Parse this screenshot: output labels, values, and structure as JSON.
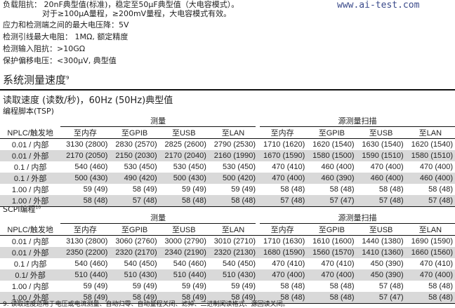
{
  "specs": [
    {
      "label": "负载阻抗：",
      "text": "20nF典型值(标准)，稳定至50μF典型值（大电容模式）。",
      "text2": "对于≥100μA量程，≥200mV量程，大电容模式有效。"
    },
    {
      "text": "应力和检测端之间的最大电压降：5V"
    },
    {
      "text": "检测引线最大电阻： 1MΩ, 额定精度"
    },
    {
      "text": "检测输入阻抗：>10GΩ"
    },
    {
      "text": "保护偏移电压：<300μV, 典型值"
    }
  ],
  "watermark": "www.ai-test.com",
  "section": {
    "title": "系统测量速度",
    "title_sup": "9",
    "subtitle": "读取速度 (读数/秒)，60Hz (50Hz)典型值"
  },
  "tsp": {
    "label": "编程脚本(TSP)",
    "groups": [
      "测量",
      "源测量扫描"
    ],
    "columns": [
      "NPLC/触发地",
      "至内存",
      "至GPIB",
      "至USB",
      "至LAN",
      "至内存",
      "至GPIB",
      "至USB",
      "至LAN"
    ],
    "rows": [
      [
        "0.01 / 内部",
        "3130 (2800)",
        "2830 (2570)",
        "2825 (2600)",
        "2790 (2530)",
        "1710 (1620)",
        "1620 (1540)",
        "1630 (1540)",
        "1620 (1540)"
      ],
      [
        "0.01 / 外部",
        "2170 (2050)",
        "2150 (2030)",
        "2170 (2040)",
        "2160 (1990)",
        "1670 (1590)",
        "1580 (1500)",
        "1590 (1510)",
        "1580 (1510)"
      ],
      [
        "0.1 / 内部",
        "540 (460)",
        "530 (450)",
        "530 (450)",
        "530 (450)",
        "470 (410)",
        "460 (400)",
        "470 (400)",
        "470 (400)"
      ],
      [
        "0.1 / 外部",
        "500 (430)",
        "490 (420)",
        "500 (430)",
        "500 (420)",
        "470 (400)",
        "460 (390)",
        "460 (400)",
        "460 (400)"
      ],
      [
        "1.00 / 内部",
        "59 (49)",
        "58 (49)",
        "59 (49)",
        "59 (49)",
        "58 (48)",
        "58 (48)",
        "58 (48)",
        "58 (48)"
      ],
      [
        "1.00 / 外部",
        "58 (48)",
        "57 (48)",
        "58 (48)",
        "58 (48)",
        "57 (48)",
        "57 (47)",
        "57 (48)",
        "57 (48)"
      ]
    ]
  },
  "scpi": {
    "label": "SCPI编程",
    "label_sup": "10",
    "groups": [
      "测量",
      "源测量扫描"
    ],
    "columns": [
      "NPLC/触发地",
      "至内存",
      "至GPIB",
      "至USB",
      "至LAN",
      "至内存",
      "至GPIB",
      "至USB",
      "至LAN"
    ],
    "rows": [
      [
        "0.01 / 内部",
        "3130 (2800)",
        "3060 (2760)",
        "3000 (2790)",
        "3010 (2710)",
        "1710 (1630)",
        "1610 (1600)",
        "1440 (1380)",
        "1690 (1590)"
      ],
      [
        "0.01 / 外部",
        "2350 (2200)",
        "2320 (2170)",
        "2340 (2190)",
        "2320 (2130)",
        "1680 (1590)",
        "1560 (1570)",
        "1410 (1360)",
        "1660 (1560)"
      ],
      [
        "0.1 / 内部",
        "540 (460)",
        "540 (450)",
        "540 (460)",
        "540 (450)",
        "470 (410)",
        "470 (410)",
        "450 (390)",
        "470 (410)"
      ],
      [
        "0.1/ 外部",
        "510 (440)",
        "510 (430)",
        "510 (440)",
        "510 (430)",
        "470 (400)",
        "470 (400)",
        "450 (390)",
        "470 (400)"
      ],
      [
        "1.00 / 内部",
        "59 (49)",
        "59 (49)",
        "59 (49)",
        "59 (49)",
        "58 (48)",
        "58 (48)",
        "57 (48)",
        "58 (48)"
      ],
      [
        "1.00 / 外部",
        "58 (49)",
        "58 (49)",
        "58 (49)",
        "58 (49)",
        "58 (48)",
        "58 (48)",
        "57 (47)",
        "58 (48)"
      ]
    ]
  },
  "footnote": "9. 读取速度适用于电压或电流测量、自动归零、自动量程关闭、滤掉、二进制阅读格式、源回读关闭。"
}
